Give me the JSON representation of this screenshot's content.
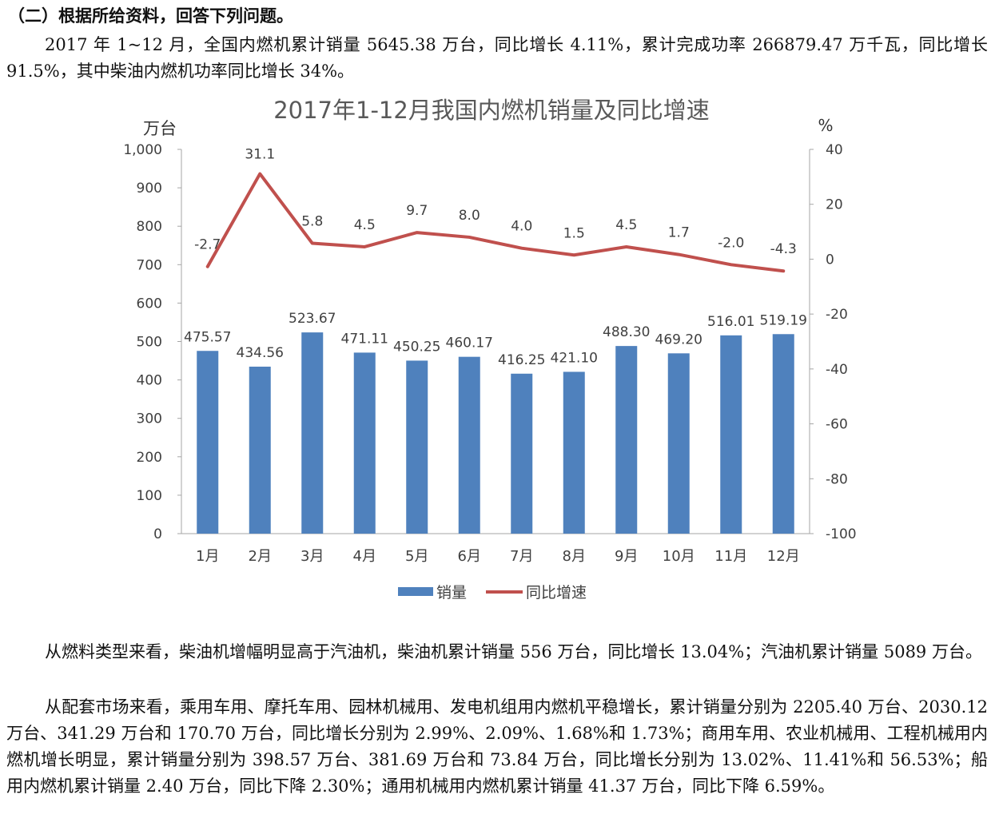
{
  "heading": "（二）根据所给资料，回答下列问题。",
  "paragraphs": [
    "2017 年 1~12 月，全国内燃机累计销量 5645.38 万台，同比增长 4.11%，累计完成功率 266879.47 万千瓦，同比增长 91.5%，其中柴油内燃机功率同比增长 34%。",
    "从燃料类型来看，柴油机增幅明显高于汽油机，柴油机累计销量 556 万台，同比增长 13.04%；汽油机累计销量 5089 万台。",
    "从配套市场来看，乘用车用、摩托车用、园林机械用、发电机组用内燃机平稳增长，累计销量分别为 2205.40 万台、2030.12 万台、341.29 万台和 170.70 万台，同比增长分别为 2.99%、2.09%、1.68%和 1.73%；商用车用、农业机械用、工程机械用内燃机增长明显，累计销量分别为 398.57 万台、381.69 万台和 73.84 万台，同比增长分别为 13.02%、11.41%和 56.53%；船用内燃机累计销量 2.40 万台，同比下降 2.30%；通用机械用内燃机累计销量 41.37 万台，同比下降 6.59%。"
  ],
  "chart_data": {
    "type": "bar+line",
    "title": "2017年1-12月我国内燃机销量及同比增速",
    "ylabel_left": "万台",
    "ylabel_right": "%",
    "ylim_left": [
      0,
      1000
    ],
    "ylim_right": [
      -100,
      40
    ],
    "yticks_left": [
      "0",
      "100",
      "200",
      "300",
      "400",
      "500",
      "600",
      "700",
      "800",
      "900",
      "1,000"
    ],
    "yticks_right": [
      "-100",
      "-80",
      "-60",
      "-40",
      "-20",
      "0",
      "20",
      "40"
    ],
    "categories": [
      "1月",
      "2月",
      "3月",
      "4月",
      "5月",
      "6月",
      "7月",
      "8月",
      "9月",
      "10月",
      "11月",
      "12月"
    ],
    "series": [
      {
        "name": "销量",
        "type": "bar",
        "axis": "left",
        "color": "#4f81bd",
        "values": [
          475.57,
          434.56,
          523.67,
          471.11,
          450.25,
          460.17,
          416.25,
          421.1,
          488.3,
          469.2,
          516.01,
          519.19
        ],
        "labels": [
          "475.57",
          "434.56",
          "523.67",
          "471.11",
          "450.25",
          "460.17",
          "416.25",
          "421.10",
          "488.30",
          "469.20",
          "516.01",
          "519.19"
        ]
      },
      {
        "name": "同比增速",
        "type": "line",
        "axis": "right",
        "color": "#c0504d",
        "values": [
          -2.7,
          31.1,
          5.8,
          4.5,
          9.7,
          8.0,
          4.0,
          1.5,
          4.5,
          1.7,
          -2.0,
          -4.3
        ],
        "labels": [
          "-2.7",
          "31.1",
          "5.8",
          "4.5",
          "9.7",
          "8.0",
          "4.0",
          "1.5",
          "4.5",
          "1.7",
          "-2.0",
          "-4.3"
        ]
      }
    ],
    "legend_position": "bottom",
    "grid": false
  }
}
